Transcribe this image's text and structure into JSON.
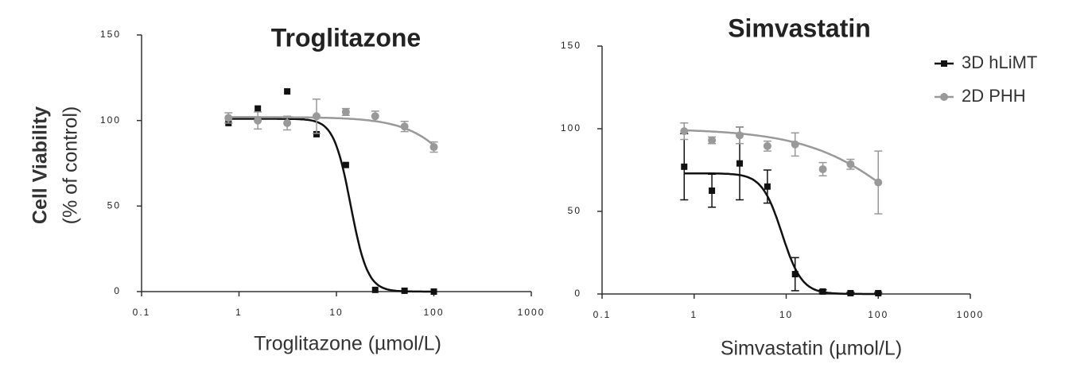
{
  "chart_data": [
    {
      "type": "scatter",
      "title": "Troglitazone",
      "xlabel": "Troglitazone (µmol/L)",
      "ylabel": [
        "Cell Viability",
        "(% of control)"
      ],
      "xscale": "log",
      "xlim": [
        0.1,
        1000
      ],
      "xticks": [
        0.1,
        1,
        10,
        100,
        1000
      ],
      "ylim": [
        0,
        150
      ],
      "yticks": [
        0,
        50,
        100,
        150
      ],
      "x": [
        0.78,
        1.56,
        3.125,
        6.25,
        12.5,
        25,
        50,
        100
      ],
      "series": [
        {
          "name": "3D hLiMT",
          "color": "#111111",
          "marker": "square",
          "values": [
            98.5,
            107,
            117,
            92,
            74,
            1,
            0.5,
            0
          ],
          "fit": {
            "top": 101,
            "bottom": 0,
            "ec50": 14,
            "hill": 5
          }
        },
        {
          "name": "2D PHH",
          "color": "#999999",
          "marker": "circle",
          "values": [
            101.5,
            100,
            98.5,
            102.5,
            105,
            102.5,
            96.5,
            84.5
          ],
          "errors": [
            3,
            5,
            4,
            10,
            2,
            3,
            3,
            3
          ],
          "fit": {
            "top": 102,
            "bottom": 0,
            "ec50": 300,
            "hill": 1.5
          }
        }
      ]
    },
    {
      "type": "scatter",
      "title": "Simvastatin",
      "xlabel": "Simvastatin (µmol/L)",
      "xscale": "log",
      "xlim": [
        0.1,
        1000
      ],
      "xticks": [
        0.1,
        1,
        10,
        100,
        1000
      ],
      "ylim": [
        0,
        150
      ],
      "yticks": [
        0,
        50,
        100,
        150
      ],
      "legend": "upper right",
      "x": [
        0.78,
        1.56,
        3.125,
        6.25,
        12.5,
        25,
        50,
        100
      ],
      "series": [
        {
          "name": "3D hLiMT",
          "color": "#111111",
          "marker": "square",
          "values": [
            77,
            62.5,
            79,
            65,
            12,
            1.5,
            0.5,
            0.5
          ],
          "errors": [
            20,
            10,
            22,
            10,
            10,
            1,
            0.5,
            0.5
          ],
          "fit": {
            "top": 73,
            "bottom": 0,
            "ec50": 9,
            "hill": 4
          }
        },
        {
          "name": "2D PHH",
          "color": "#999999",
          "marker": "circle",
          "values": [
            98.5,
            93,
            96,
            89.5,
            90.5,
            75.5,
            78.5,
            67.5
          ],
          "errors": [
            5,
            2,
            5,
            3,
            7,
            4,
            3,
            19
          ],
          "fit": {
            "top": 100,
            "bottom": 0,
            "ec50": 250,
            "hill": 0.8
          }
        }
      ]
    }
  ]
}
